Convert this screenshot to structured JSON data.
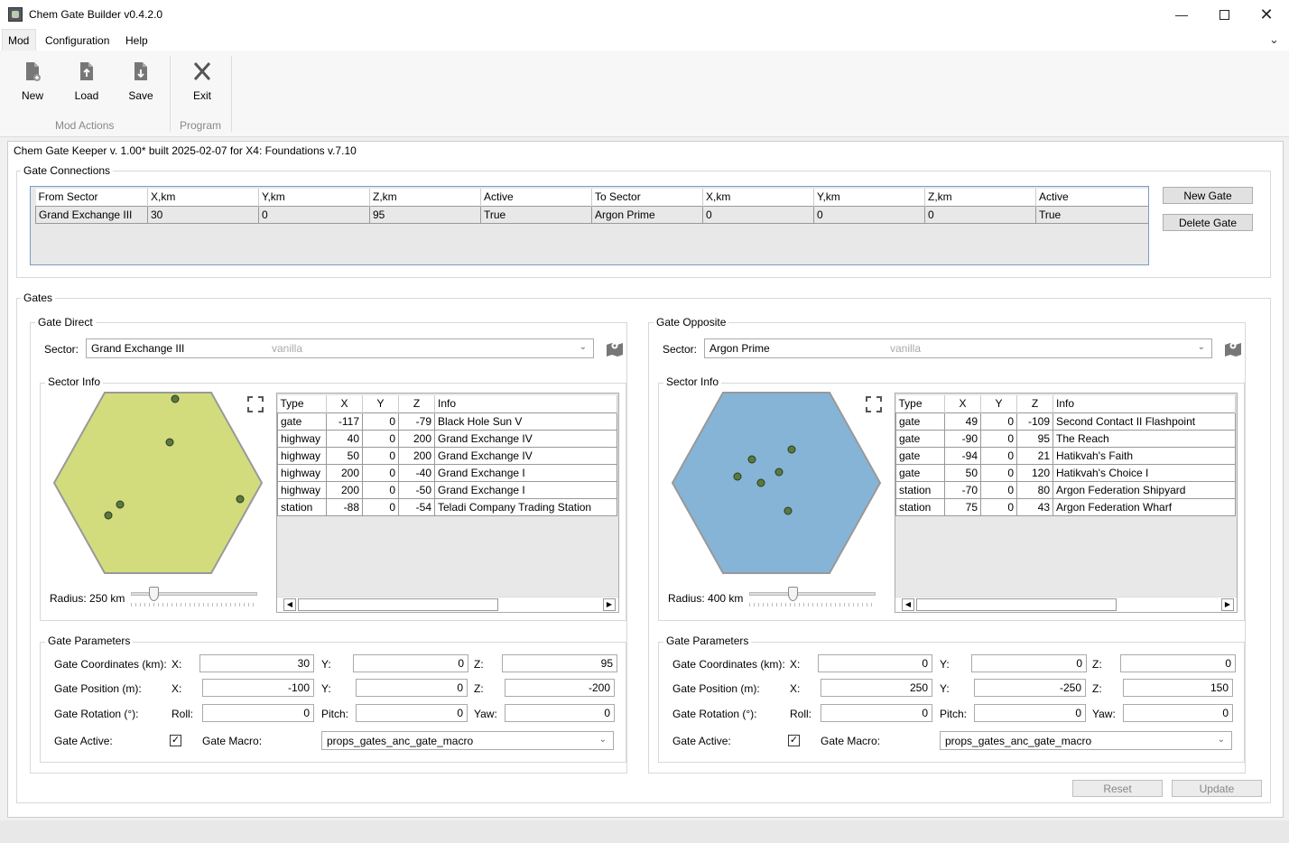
{
  "window": {
    "title": "Chem Gate Builder v0.4.2.0"
  },
  "menu": {
    "items": [
      "Mod",
      "Configuration",
      "Help"
    ]
  },
  "ribbon": {
    "buttons": {
      "new": "New",
      "load": "Load",
      "save": "Save",
      "exit": "Exit"
    },
    "groups": {
      "mod_actions": "Mod Actions",
      "program": "Program"
    }
  },
  "header": {
    "version_text": "Chem Gate Keeper v. 1.00* built 2025-02-07 for X4: Foundations v.7.10"
  },
  "connections": {
    "title": "Gate Connections",
    "columns": [
      "From Sector",
      "X,km",
      "Y,km",
      "Z,km",
      "Active",
      "To Sector",
      "X,km",
      "Y,km",
      "Z,km",
      "Active"
    ],
    "rows": [
      [
        "Grand Exchange III",
        "30",
        "0",
        "95",
        "True",
        "Argon Prime",
        "0",
        "0",
        "0",
        "True"
      ]
    ],
    "new_gate": "New Gate",
    "delete_gate": "Delete Gate"
  },
  "gates": {
    "title": "Gates",
    "sector_label": "Sector:",
    "sector_info_label": "Sector Info",
    "param_title": "Gate Parameters",
    "coord_label": "Gate Coordinates (km):",
    "pos_label": "Gate Position (m):",
    "rot_label": "Gate Rotation (°):",
    "active_label": "Gate Active:",
    "macro_label": "Gate Macro:",
    "x": "X:",
    "y": "Y:",
    "z": "Z:",
    "roll": "Roll:",
    "pitch": "Pitch:",
    "yaw": "Yaw:",
    "table_columns": [
      "Type",
      "X",
      "Y",
      "Z",
      "Info"
    ],
    "direct": {
      "title": "Gate Direct",
      "sector": "Grand Exchange III",
      "sector_source": "vanilla",
      "radius": "Radius: 250 km",
      "radius_fraction": 0.15,
      "hex_color": "#d3dc7c",
      "rows": [
        [
          "gate",
          "-117",
          "0",
          "-79",
          "Black Hole Sun V"
        ],
        [
          "highway",
          "40",
          "0",
          "200",
          "Grand Exchange IV"
        ],
        [
          "highway",
          "50",
          "0",
          "200",
          "Grand Exchange IV"
        ],
        [
          "highway",
          "200",
          "0",
          "-40",
          "Grand Exchange I"
        ],
        [
          "highway",
          "200",
          "0",
          "-50",
          "Grand Exchange I"
        ],
        [
          "station",
          "-88",
          "0",
          "-54",
          "Teladi Company Trading Station"
        ]
      ],
      "coords": [
        "30",
        "0",
        "95"
      ],
      "position": [
        "-100",
        "0",
        "-200"
      ],
      "rotation": [
        "0",
        "0",
        "0"
      ],
      "active_check": "✓",
      "macro": "props_gates_anc_gate_macro"
    },
    "opposite": {
      "title": "Gate Opposite",
      "sector": "Argon Prime",
      "sector_source": "vanilla",
      "radius": "Radius: 400 km",
      "radius_fraction": 0.33,
      "hex_color": "#86b4d6",
      "rows": [
        [
          "gate",
          "49",
          "0",
          "-109",
          "Second Contact II Flashpoint"
        ],
        [
          "gate",
          "-90",
          "0",
          "95",
          "The Reach"
        ],
        [
          "gate",
          "-94",
          "0",
          "21",
          "Hatikvah's Faith"
        ],
        [
          "gate",
          "50",
          "0",
          "120",
          "Hatikvah's Choice I"
        ],
        [
          "station",
          "-70",
          "0",
          "80",
          "Argon Federation Shipyard"
        ],
        [
          "station",
          "75",
          "0",
          "43",
          "Argon Federation Wharf"
        ]
      ],
      "coords": [
        "0",
        "0",
        "0"
      ],
      "position": [
        "250",
        "-250",
        "150"
      ],
      "rotation": [
        "0",
        "0",
        "0"
      ],
      "active_check": "✓",
      "macro": "props_gates_anc_gate_macro"
    }
  },
  "footer": {
    "reset": "Reset",
    "update": "Update"
  }
}
